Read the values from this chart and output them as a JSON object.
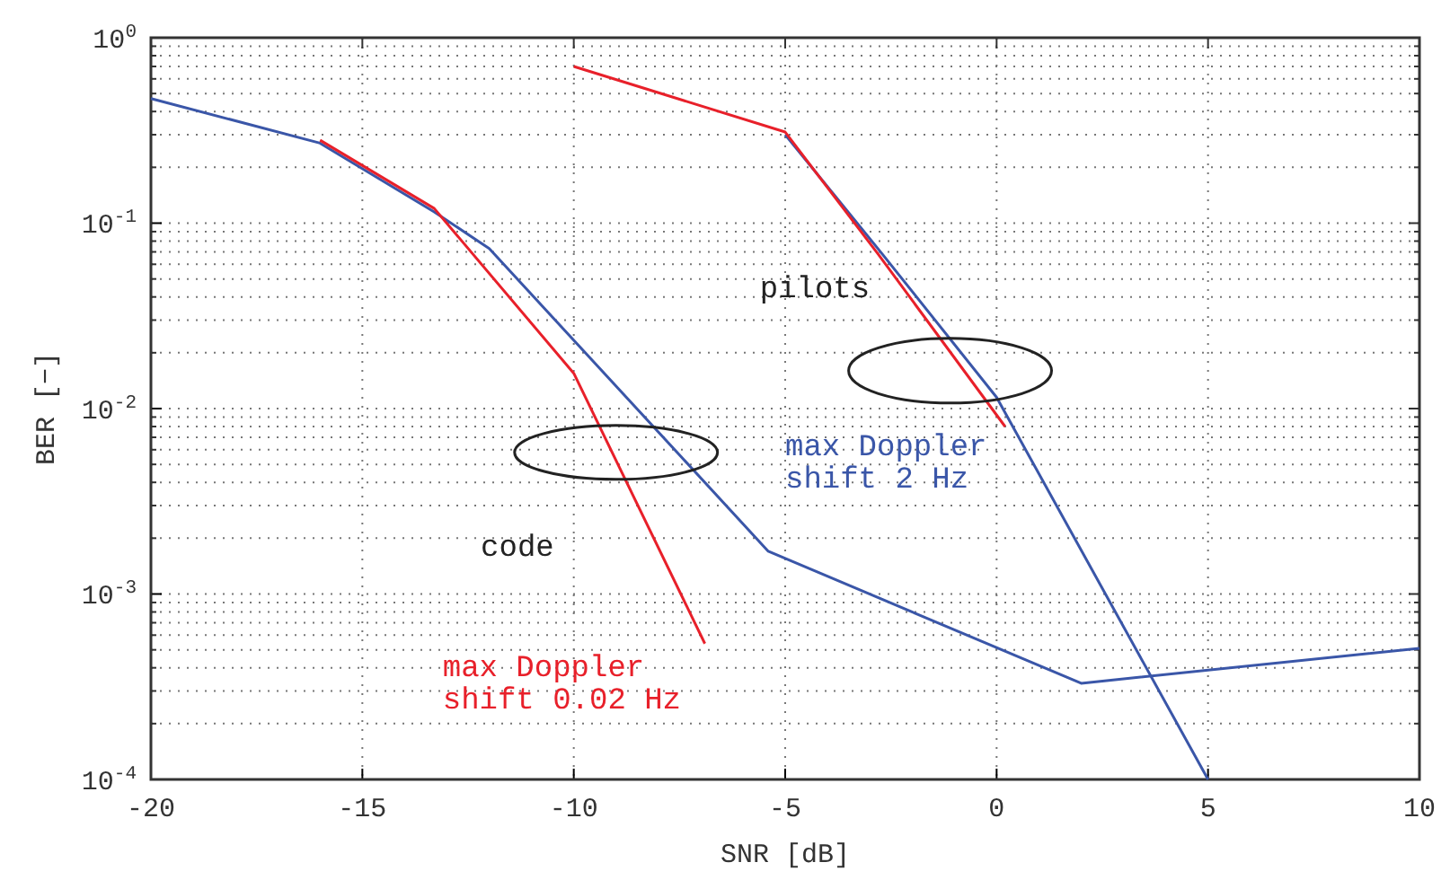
{
  "chart_data": {
    "type": "line",
    "xlabel": "SNR [dB]",
    "ylabel": "BER [−]",
    "log": "y",
    "grid": true,
    "line_style": "solid",
    "marker": "none",
    "xlim": [
      -20,
      10
    ],
    "xticks": [
      -20,
      -15,
      -10,
      -5,
      0,
      5,
      10
    ],
    "ylim": [
      0.0001,
      1
    ],
    "yticks": [
      {
        "value": 0.0001,
        "label": "10$^{-4}$"
      },
      {
        "value": 0.001,
        "label": "10$^{-3}$"
      },
      {
        "value": 0.01,
        "label": "10$^{-2}$"
      },
      {
        "value": 0.1,
        "label": "10$^{-1}$"
      },
      {
        "value": 1,
        "label": "10$^{0}$"
      }
    ],
    "series": [
      {
        "color": "#3a56a8",
        "x": [
          -20,
          -16,
          -13.3,
          -12,
          -5.4,
          2,
          10
        ],
        "values": [
          0.47,
          0.27,
          0.115,
          0.073,
          0.0017,
          0.00033,
          0.00051
        ]
      },
      {
        "name": "max Doppler shift 0.02 Hz",
        "color": "#e8202a",
        "x": [
          -16,
          -13.3,
          -10,
          -6.9
        ],
        "values": [
          0.28,
          0.12,
          0.0155,
          0.00054
        ]
      },
      {
        "name": "max Doppler shift 2 Hz",
        "color": "#3a56a8",
        "x": [
          -5,
          -2.7,
          0,
          5
        ],
        "values": [
          0.3,
          0.068,
          0.0115,
          0.0001
        ]
      },
      {
        "color": "#e8202a",
        "x": [
          -10,
          -5,
          -2.8,
          0.2
        ],
        "values": [
          0.7,
          0.31,
          0.068,
          0.008
        ]
      }
    ],
    "annotations": [
      "pilots",
      "code"
    ]
  }
}
